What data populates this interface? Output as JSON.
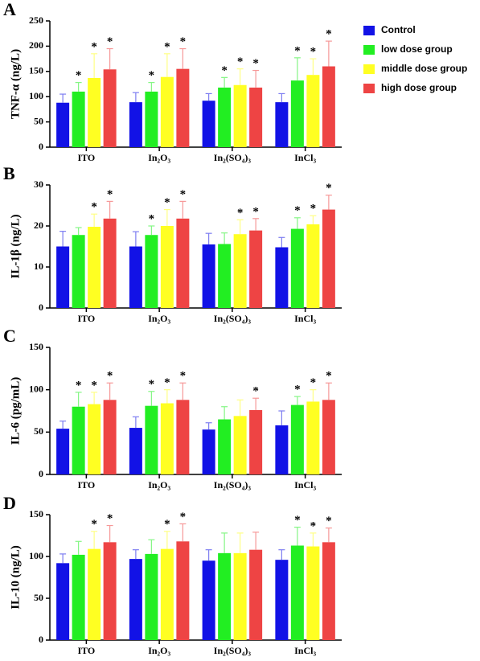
{
  "chart_data": [
    {
      "type": "bar",
      "panel_label": "A",
      "y_label": "TNF-α (ng/L)",
      "legend": "right",
      "categories": [
        "ITO",
        "In₂O₃",
        "In₂(SO₄)₃",
        "InCl₃"
      ],
      "ylim": [
        0,
        250
      ],
      "yticks": [
        0,
        50,
        100,
        150,
        200,
        250
      ],
      "series": [
        {
          "name": "Control",
          "color": "#1212e6",
          "values": [
            88,
            89,
            92,
            89
          ],
          "errors": [
            17,
            19,
            14,
            17
          ],
          "significance": [
            null,
            null,
            null,
            null
          ]
        },
        {
          "name": "low dose group",
          "color": "#22ee22",
          "values": [
            110,
            110,
            118,
            132
          ],
          "errors": [
            18,
            18,
            20,
            45
          ],
          "significance": [
            "*",
            "*",
            "*",
            "*"
          ]
        },
        {
          "name": "middle dose group",
          "color": "#ffff22",
          "values": [
            137,
            139,
            123,
            143
          ],
          "errors": [
            48,
            46,
            32,
            32
          ],
          "significance": [
            "*",
            "*",
            "*",
            "*"
          ]
        },
        {
          "name": "high dose group",
          "color": "#ee4444",
          "values": [
            154,
            155,
            118,
            160
          ],
          "errors": [
            41,
            40,
            34,
            50
          ],
          "significance": [
            "*",
            "*",
            "*",
            "*"
          ]
        }
      ]
    },
    {
      "type": "bar",
      "panel_label": "B",
      "y_label": "IL-1β (ng/L)",
      "categories": [
        "ITO",
        "In₂O₃",
        "In₂(SO₄)₃",
        "InCl₃"
      ],
      "ylim": [
        0,
        30
      ],
      "yticks": [
        0,
        10,
        20,
        30
      ],
      "series": [
        {
          "color": "#1212e6",
          "values": [
            15,
            15,
            15.5,
            14.8
          ],
          "errors": [
            3.7,
            3.6,
            2.7,
            2.4
          ],
          "significance": [
            null,
            null,
            null,
            null
          ]
        },
        {
          "color": "#22ee22",
          "values": [
            17.8,
            17.8,
            15.6,
            19.3
          ],
          "errors": [
            1.8,
            2.2,
            2.7,
            2.7
          ],
          "significance": [
            null,
            "*",
            null,
            "*"
          ]
        },
        {
          "color": "#ffff22",
          "values": [
            19.8,
            20,
            18,
            20.4
          ],
          "errors": [
            3.1,
            4,
            3.5,
            2.1
          ],
          "significance": [
            "*",
            "*",
            "*",
            "*"
          ]
        },
        {
          "color": "#ee4444",
          "values": [
            21.8,
            21.8,
            18.9,
            24
          ],
          "errors": [
            4.2,
            4.2,
            2.9,
            3.5
          ],
          "significance": [
            "*",
            "*",
            "*",
            "*"
          ]
        }
      ]
    },
    {
      "type": "bar",
      "panel_label": "C",
      "y_label": "IL-6 (pg/mL)",
      "categories": [
        "ITO",
        "In₂O₃",
        "In₂(SO₄)₃",
        "InCl₃"
      ],
      "ylim": [
        0,
        150
      ],
      "yticks": [
        0,
        50,
        100,
        150
      ],
      "series": [
        {
          "color": "#1212e6",
          "values": [
            54,
            55,
            53,
            58
          ],
          "errors": [
            9,
            13,
            8,
            17
          ],
          "significance": [
            null,
            null,
            null,
            null
          ]
        },
        {
          "color": "#22ee22",
          "values": [
            80,
            81,
            65,
            82
          ],
          "errors": [
            17,
            17,
            15,
            10
          ],
          "significance": [
            "*",
            "*",
            null,
            "*"
          ]
        },
        {
          "color": "#ffff22",
          "values": [
            83,
            84,
            69,
            86
          ],
          "errors": [
            14,
            16,
            19,
            14
          ],
          "significance": [
            "*",
            "*",
            null,
            "*"
          ]
        },
        {
          "color": "#ee4444",
          "values": [
            88,
            88,
            76,
            88
          ],
          "errors": [
            20,
            20,
            14,
            20
          ],
          "significance": [
            "*",
            "*",
            "*",
            "*"
          ]
        }
      ]
    },
    {
      "type": "bar",
      "panel_label": "D",
      "y_label": "IL-10 (ng/L)",
      "categories": [
        "ITO",
        "In₂O₃",
        "In₂(SO₄)₃",
        "InCl₃"
      ],
      "ylim": [
        0,
        150
      ],
      "yticks": [
        0,
        50,
        100,
        150
      ],
      "series": [
        {
          "color": "#1212e6",
          "values": [
            92,
            97,
            95,
            96
          ],
          "errors": [
            11,
            11,
            13,
            12
          ],
          "significance": [
            null,
            null,
            null,
            null
          ]
        },
        {
          "color": "#22ee22",
          "values": [
            102,
            103,
            104,
            113
          ],
          "errors": [
            16,
            17,
            24,
            22
          ],
          "significance": [
            null,
            null,
            null,
            "*"
          ]
        },
        {
          "color": "#ffff22",
          "values": [
            109,
            109,
            104,
            112
          ],
          "errors": [
            21,
            21,
            24,
            16
          ],
          "significance": [
            "*",
            "*",
            null,
            "*"
          ]
        },
        {
          "color": "#ee4444",
          "values": [
            117,
            118,
            108,
            117
          ],
          "errors": [
            20,
            21,
            21,
            17
          ],
          "significance": [
            "*",
            "*",
            null,
            "*"
          ]
        }
      ]
    }
  ]
}
